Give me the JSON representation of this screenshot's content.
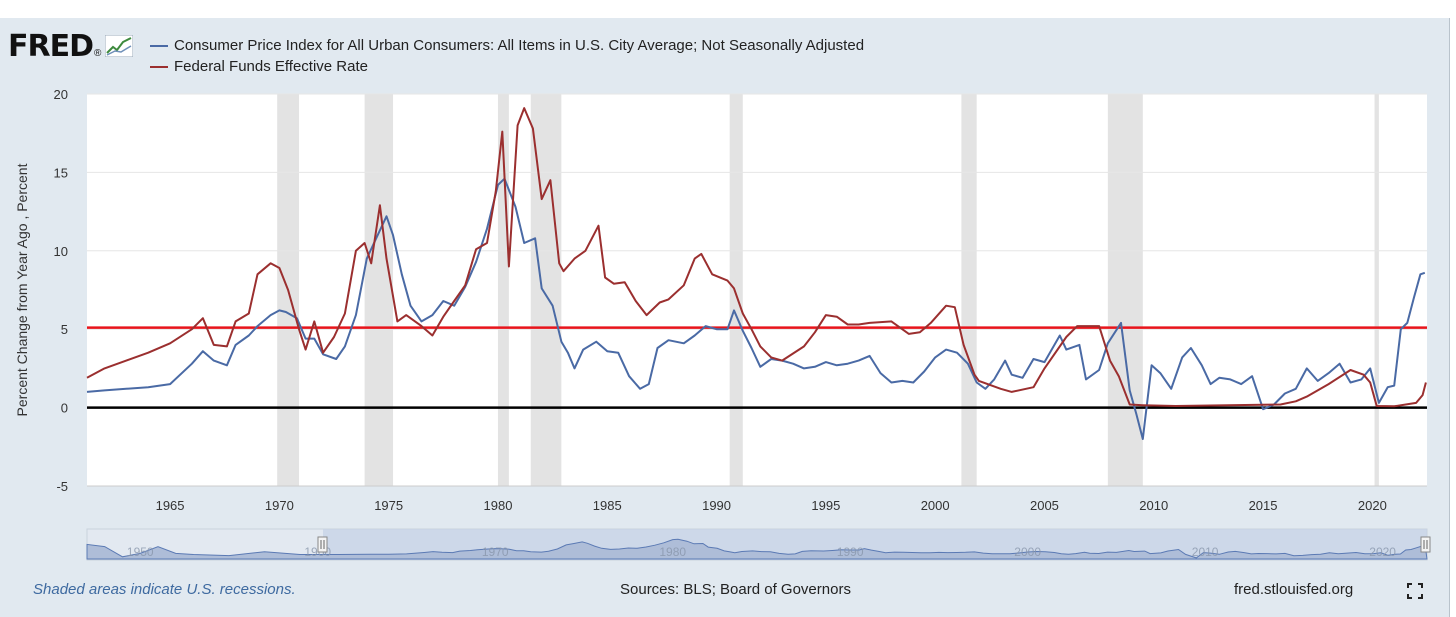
{
  "header": {
    "logo_text": "FRED",
    "logo_mark": "®"
  },
  "footer": {
    "note": "Shaded areas indicate U.S. recessions.",
    "sources": "Sources: BLS; Board of Governors",
    "url": "fred.stlouisfed.org"
  },
  "colors": {
    "cpi": "#4a6aa5",
    "fedfunds": "#9b2f2f",
    "reference_red": "#e8141b",
    "reference_black": "#000000",
    "recession": "#e3e3e3",
    "navigator": "#aebdd8"
  },
  "icons": {
    "logo": "trend-chart-icon",
    "fullscreen": "fullscreen-icon"
  },
  "chart_data": {
    "type": "line",
    "title": "",
    "xlabel": "",
    "ylabel": "Percent Change from Year Ago , Percent",
    "xlim": [
      1961.2,
      2022.5
    ],
    "ylim": [
      -5,
      20
    ],
    "yticks": [
      -5,
      0,
      5,
      10,
      15,
      20
    ],
    "xticks": [
      1965,
      1970,
      1975,
      1980,
      1985,
      1990,
      1995,
      2000,
      2005,
      2010,
      2015,
      2020
    ],
    "grid": true,
    "legend_position": "top-left",
    "reference_lines": [
      {
        "y": 5.1,
        "color": "#e8141b"
      },
      {
        "y": 0,
        "color": "#000000"
      }
    ],
    "recessions": [
      [
        1969.9,
        1970.9
      ],
      [
        1973.9,
        1975.2
      ],
      [
        1980.0,
        1980.5
      ],
      [
        1981.5,
        1982.9
      ],
      [
        1990.6,
        1991.2
      ],
      [
        2001.2,
        2001.9
      ],
      [
        2007.9,
        2009.5
      ],
      [
        2020.1,
        2020.3
      ]
    ],
    "navigator": {
      "tick_labels": [
        "1950",
        "1960",
        "1970",
        "1980",
        "1990",
        "2000",
        "2010",
        "2020"
      ]
    },
    "series": [
      {
        "name": "Consumer Price Index for All Urban Consumers: All Items in U.S. City Average; Not Seasonally Adjusted",
        "color": "#4a6aa5",
        "points": [
          [
            1961.2,
            1.0
          ],
          [
            1962,
            1.1
          ],
          [
            1963,
            1.2
          ],
          [
            1964,
            1.3
          ],
          [
            1965,
            1.5
          ],
          [
            1966,
            2.8
          ],
          [
            1966.5,
            3.6
          ],
          [
            1967,
            3.0
          ],
          [
            1967.6,
            2.7
          ],
          [
            1968,
            4.0
          ],
          [
            1968.6,
            4.6
          ],
          [
            1969,
            5.2
          ],
          [
            1969.6,
            5.9
          ],
          [
            1970,
            6.2
          ],
          [
            1970.3,
            6.1
          ],
          [
            1970.8,
            5.7
          ],
          [
            1971.2,
            4.4
          ],
          [
            1971.6,
            4.4
          ],
          [
            1972,
            3.4
          ],
          [
            1972.6,
            3.1
          ],
          [
            1973,
            3.9
          ],
          [
            1973.5,
            5.9
          ],
          [
            1974,
            9.5
          ],
          [
            1974.4,
            10.7
          ],
          [
            1974.9,
            12.2
          ],
          [
            1975.2,
            11.0
          ],
          [
            1975.6,
            8.5
          ],
          [
            1976,
            6.5
          ],
          [
            1976.5,
            5.5
          ],
          [
            1977,
            5.9
          ],
          [
            1977.5,
            6.8
          ],
          [
            1978,
            6.5
          ],
          [
            1978.5,
            7.7
          ],
          [
            1979,
            9.3
          ],
          [
            1979.5,
            11.4
          ],
          [
            1980,
            14.2
          ],
          [
            1980.3,
            14.6
          ],
          [
            1980.8,
            12.8
          ],
          [
            1981.2,
            10.5
          ],
          [
            1981.7,
            10.8
          ],
          [
            1982,
            7.6
          ],
          [
            1982.5,
            6.5
          ],
          [
            1982.9,
            4.2
          ],
          [
            1983.2,
            3.5
          ],
          [
            1983.5,
            2.5
          ],
          [
            1983.9,
            3.7
          ],
          [
            1984.5,
            4.2
          ],
          [
            1985,
            3.6
          ],
          [
            1985.5,
            3.5
          ],
          [
            1986,
            2.0
          ],
          [
            1986.5,
            1.2
          ],
          [
            1986.9,
            1.5
          ],
          [
            1987.3,
            3.8
          ],
          [
            1987.8,
            4.3
          ],
          [
            1988.5,
            4.1
          ],
          [
            1989,
            4.6
          ],
          [
            1989.5,
            5.2
          ],
          [
            1990,
            5.0
          ],
          [
            1990.5,
            5.0
          ],
          [
            1990.8,
            6.2
          ],
          [
            1991.2,
            4.9
          ],
          [
            1991.6,
            3.8
          ],
          [
            1992,
            2.6
          ],
          [
            1992.5,
            3.1
          ],
          [
            1993,
            3.0
          ],
          [
            1993.5,
            2.8
          ],
          [
            1994,
            2.5
          ],
          [
            1994.5,
            2.6
          ],
          [
            1995,
            2.9
          ],
          [
            1995.5,
            2.7
          ],
          [
            1996,
            2.8
          ],
          [
            1996.5,
            3.0
          ],
          [
            1997,
            3.3
          ],
          [
            1997.5,
            2.2
          ],
          [
            1998,
            1.6
          ],
          [
            1998.5,
            1.7
          ],
          [
            1999,
            1.6
          ],
          [
            1999.5,
            2.3
          ],
          [
            2000,
            3.2
          ],
          [
            2000.5,
            3.7
          ],
          [
            2001,
            3.5
          ],
          [
            2001.5,
            2.8
          ],
          [
            2001.9,
            1.6
          ],
          [
            2002.3,
            1.2
          ],
          [
            2002.7,
            1.8
          ],
          [
            2003.2,
            3.0
          ],
          [
            2003.5,
            2.1
          ],
          [
            2004,
            1.9
          ],
          [
            2004.5,
            3.1
          ],
          [
            2005,
            2.9
          ],
          [
            2005.7,
            4.6
          ],
          [
            2006,
            3.7
          ],
          [
            2006.6,
            4.0
          ],
          [
            2006.9,
            1.8
          ],
          [
            2007.5,
            2.4
          ],
          [
            2007.9,
            4.1
          ],
          [
            2008.5,
            5.4
          ],
          [
            2008.9,
            1.1
          ],
          [
            2009.2,
            -0.4
          ],
          [
            2009.5,
            -2.0
          ],
          [
            2009.9,
            2.7
          ],
          [
            2010.3,
            2.2
          ],
          [
            2010.8,
            1.2
          ],
          [
            2011.3,
            3.2
          ],
          [
            2011.7,
            3.8
          ],
          [
            2012.2,
            2.7
          ],
          [
            2012.6,
            1.5
          ],
          [
            2013,
            1.9
          ],
          [
            2013.5,
            1.8
          ],
          [
            2014,
            1.5
          ],
          [
            2014.5,
            2.0
          ],
          [
            2015,
            -0.1
          ],
          [
            2015.5,
            0.2
          ],
          [
            2016,
            0.9
          ],
          [
            2016.5,
            1.2
          ],
          [
            2017,
            2.5
          ],
          [
            2017.5,
            1.7
          ],
          [
            2018,
            2.2
          ],
          [
            2018.5,
            2.8
          ],
          [
            2019,
            1.6
          ],
          [
            2019.5,
            1.8
          ],
          [
            2019.9,
            2.5
          ],
          [
            2020.3,
            0.3
          ],
          [
            2020.7,
            1.3
          ],
          [
            2021,
            1.4
          ],
          [
            2021.3,
            5.0
          ],
          [
            2021.6,
            5.4
          ],
          [
            2021.9,
            7.0
          ],
          [
            2022.2,
            8.5
          ],
          [
            2022.4,
            8.6
          ]
        ]
      },
      {
        "name": "Federal Funds Effective Rate",
        "color": "#9b2f2f",
        "points": [
          [
            1961.2,
            1.9
          ],
          [
            1962,
            2.5
          ],
          [
            1963,
            3.0
          ],
          [
            1964,
            3.5
          ],
          [
            1965,
            4.1
          ],
          [
            1966,
            5.0
          ],
          [
            1966.5,
            5.7
          ],
          [
            1967,
            4.0
          ],
          [
            1967.6,
            3.9
          ],
          [
            1968,
            5.5
          ],
          [
            1968.6,
            6.0
          ],
          [
            1969,
            8.5
          ],
          [
            1969.6,
            9.2
          ],
          [
            1970,
            8.9
          ],
          [
            1970.4,
            7.5
          ],
          [
            1970.9,
            5.0
          ],
          [
            1971.2,
            3.7
          ],
          [
            1971.6,
            5.5
          ],
          [
            1972,
            3.5
          ],
          [
            1972.5,
            4.5
          ],
          [
            1973,
            6.0
          ],
          [
            1973.5,
            10.0
          ],
          [
            1973.9,
            10.5
          ],
          [
            1974.2,
            9.2
          ],
          [
            1974.6,
            12.9
          ],
          [
            1974.9,
            9.5
          ],
          [
            1975.4,
            5.5
          ],
          [
            1975.8,
            5.9
          ],
          [
            1976.5,
            5.2
          ],
          [
            1977,
            4.6
          ],
          [
            1977.5,
            5.8
          ],
          [
            1978,
            6.8
          ],
          [
            1978.5,
            7.8
          ],
          [
            1979,
            10.1
          ],
          [
            1979.5,
            10.5
          ],
          [
            1979.9,
            13.8
          ],
          [
            1980.2,
            17.6
          ],
          [
            1980.5,
            9.0
          ],
          [
            1980.9,
            18.0
          ],
          [
            1981.2,
            19.1
          ],
          [
            1981.6,
            17.8
          ],
          [
            1982,
            13.3
          ],
          [
            1982.4,
            14.5
          ],
          [
            1982.8,
            9.2
          ],
          [
            1983,
            8.7
          ],
          [
            1983.5,
            9.5
          ],
          [
            1984,
            10.0
          ],
          [
            1984.6,
            11.6
          ],
          [
            1984.9,
            8.3
          ],
          [
            1985.3,
            7.9
          ],
          [
            1985.8,
            8.0
          ],
          [
            1986.3,
            6.8
          ],
          [
            1986.8,
            5.9
          ],
          [
            1987.4,
            6.7
          ],
          [
            1987.8,
            6.9
          ],
          [
            1988.5,
            7.8
          ],
          [
            1989,
            9.5
          ],
          [
            1989.3,
            9.8
          ],
          [
            1989.8,
            8.5
          ],
          [
            1990.5,
            8.1
          ],
          [
            1990.8,
            7.6
          ],
          [
            1991.2,
            6.0
          ],
          [
            1991.6,
            5.0
          ],
          [
            1992,
            3.9
          ],
          [
            1992.5,
            3.2
          ],
          [
            1993,
            3.0
          ],
          [
            1994,
            3.9
          ],
          [
            1994.5,
            4.8
          ],
          [
            1995,
            5.9
          ],
          [
            1995.5,
            5.8
          ],
          [
            1996,
            5.3
          ],
          [
            1996.5,
            5.3
          ],
          [
            1997,
            5.4
          ],
          [
            1998,
            5.5
          ],
          [
            1998.8,
            4.7
          ],
          [
            1999.3,
            4.8
          ],
          [
            1999.8,
            5.4
          ],
          [
            2000.5,
            6.5
          ],
          [
            2000.9,
            6.4
          ],
          [
            2001.3,
            4.0
          ],
          [
            2001.8,
            2.1
          ],
          [
            2002,
            1.7
          ],
          [
            2003,
            1.2
          ],
          [
            2003.5,
            1.0
          ],
          [
            2004.5,
            1.3
          ],
          [
            2005,
            2.5
          ],
          [
            2006,
            4.5
          ],
          [
            2006.5,
            5.2
          ],
          [
            2007.5,
            5.2
          ],
          [
            2008,
            3.0
          ],
          [
            2008.4,
            2.0
          ],
          [
            2008.9,
            0.2
          ],
          [
            2009.5,
            0.15
          ],
          [
            2011,
            0.1
          ],
          [
            2015.8,
            0.2
          ],
          [
            2016.5,
            0.4
          ],
          [
            2017,
            0.7
          ],
          [
            2018,
            1.5
          ],
          [
            2019,
            2.4
          ],
          [
            2019.6,
            2.1
          ],
          [
            2019.9,
            1.6
          ],
          [
            2020.2,
            0.1
          ],
          [
            2021,
            0.08
          ],
          [
            2022,
            0.3
          ],
          [
            2022.3,
            0.8
          ],
          [
            2022.45,
            1.6
          ]
        ]
      }
    ]
  }
}
